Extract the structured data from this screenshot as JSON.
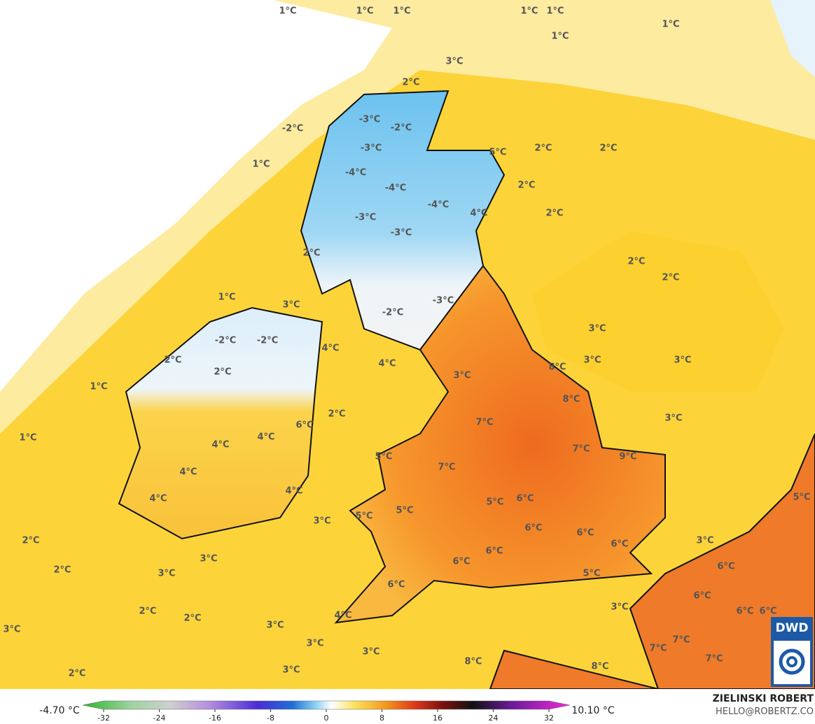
{
  "map": {
    "labels": [
      "1°C",
      "1°C",
      "1°C",
      "1°C",
      "1°C",
      "1°C",
      "1°C",
      "3°C",
      "2°C",
      "-3°C",
      "-2°C",
      "-2°C",
      "5°C",
      "2°C",
      "2°C",
      "-3°C",
      "1°C",
      "-4°C",
      "2°C",
      "-4°C",
      "-4°C",
      "4°C",
      "2°C",
      "-3°C",
      "-3°C",
      "2°C",
      "2°C",
      "2°C",
      "1°C",
      "3°C",
      "-3°C",
      "-2°C",
      "3°C",
      "-2°C",
      "-2°C",
      "4°C",
      "3°C",
      "3°C",
      "2°C",
      "4°C",
      "8°C",
      "2°C",
      "3°C",
      "1°C",
      "8°C",
      "2°C",
      "3°C",
      "7°C",
      "6°C",
      "1°C",
      "4°C",
      "4°C",
      "7°C",
      "9°C",
      "5°C",
      "7°C",
      "4°C",
      "4°C",
      "4°C",
      "5°C",
      "6°C",
      "5°C",
      "5°C",
      "5°C",
      "3°C",
      "6°C",
      "6°C",
      "2°C",
      "3°C",
      "6°C",
      "6°C",
      "3°C",
      "6°C",
      "6°C",
      "2°C",
      "3°C",
      "5°C",
      "6°C",
      "6°C",
      "3°C",
      "6°C",
      "6°C",
      "2°C",
      "2°C",
      "4°C",
      "3°C",
      "3°C",
      "7°C",
      "3°C",
      "7°C",
      "3°C",
      "7°C",
      "8°C",
      "8°C",
      "2°C",
      "3°C"
    ],
    "logo": "DWD"
  },
  "colorbar": {
    "min_label": "-4.70 °C",
    "max_label": "10.10 °C",
    "ticks": [
      -32,
      -24,
      -16,
      -8,
      0,
      8,
      16,
      24,
      32
    ]
  },
  "credits": {
    "name": "ZIELINSKI ROBERT",
    "email": "HELLO@ROBERTZ.CO"
  }
}
